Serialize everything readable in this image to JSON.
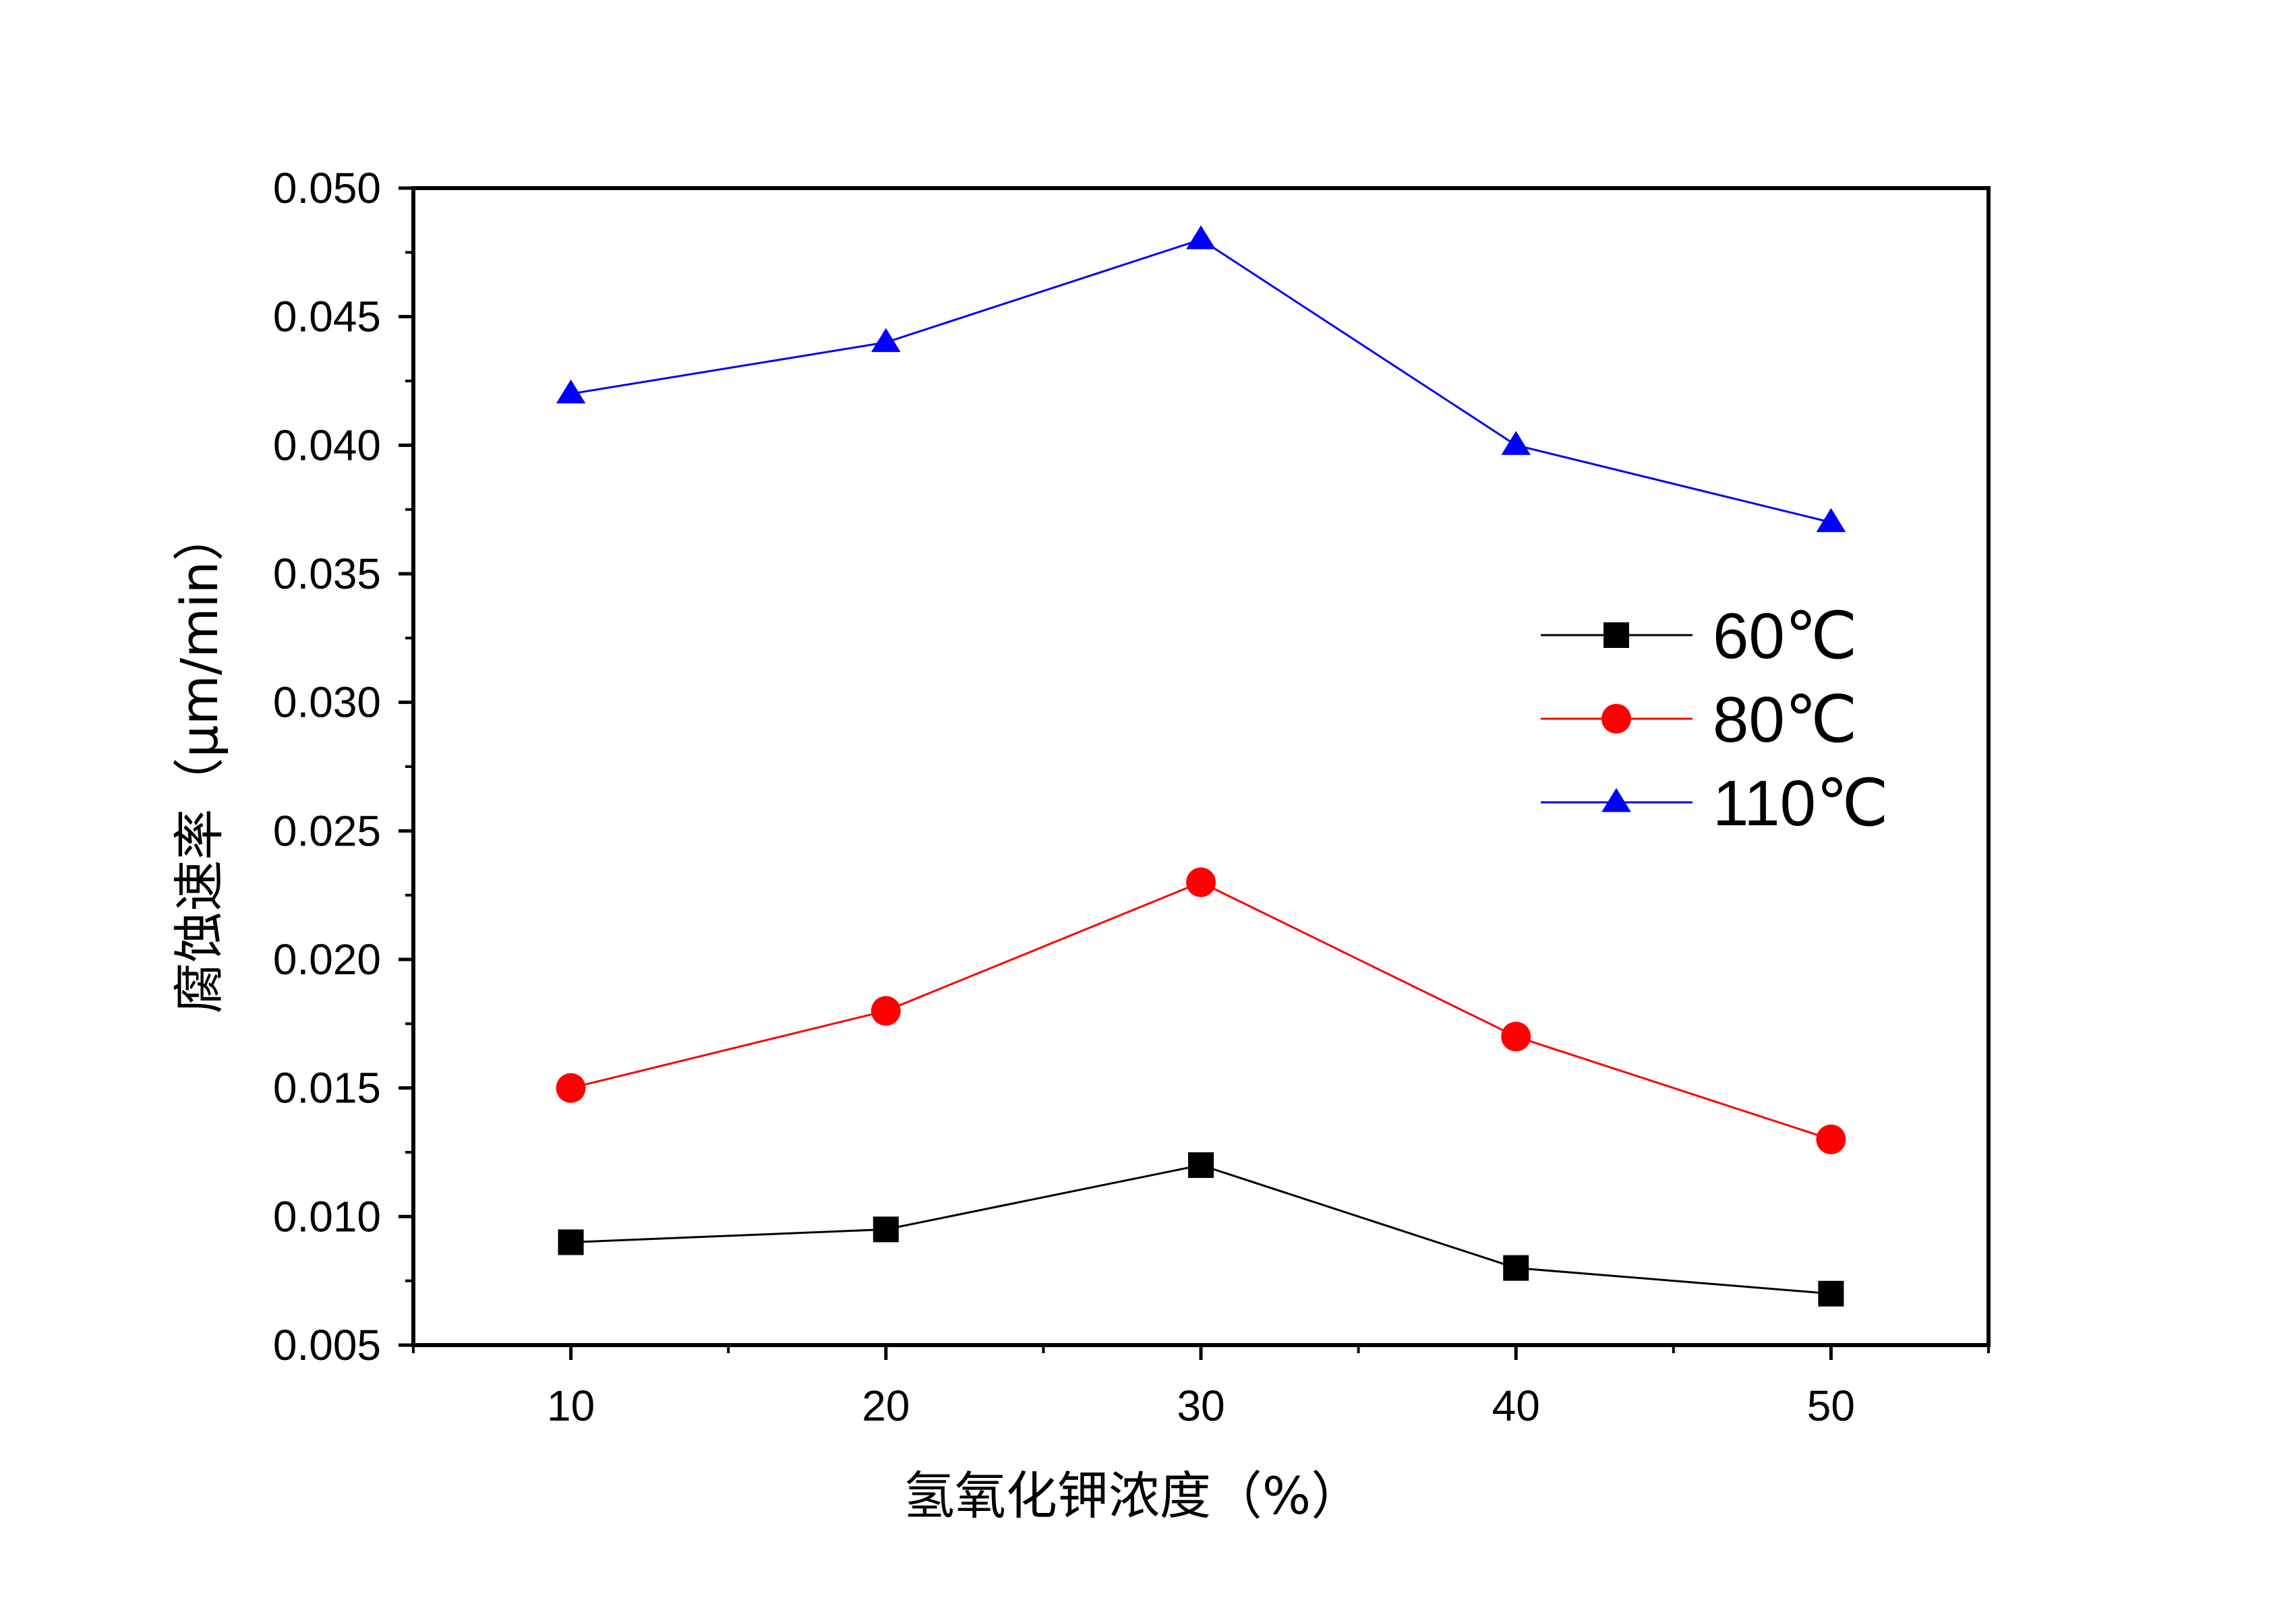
{
  "chart_data": {
    "type": "line",
    "title": "",
    "xlabel": "氢氧化钾浓度（%）",
    "ylabel": "腐蚀速率（μm/min）",
    "x": [
      10,
      20,
      30,
      40,
      50
    ],
    "xlim": [
      5,
      55
    ],
    "ylim": [
      0.005,
      0.05
    ],
    "x_ticks": [
      10,
      20,
      30,
      40,
      50
    ],
    "x_tick_labels": [
      "10",
      "20",
      "30",
      "40",
      "50"
    ],
    "y_ticks": [
      0.005,
      0.01,
      0.015,
      0.02,
      0.025,
      0.03,
      0.035,
      0.04,
      0.045,
      0.05
    ],
    "y_tick_labels": [
      "0.005",
      "0.010",
      "0.015",
      "0.020",
      "0.025",
      "0.030",
      "0.035",
      "0.040",
      "0.045",
      "0.050"
    ],
    "grid": false,
    "legend_position": "right",
    "series": [
      {
        "name": "60℃",
        "color": "#000000",
        "marker": "square",
        "values": [
          0.009,
          0.0095,
          0.012,
          0.008,
          0.007
        ]
      },
      {
        "name": "80℃",
        "color": "#ff0000",
        "marker": "circle",
        "values": [
          0.015,
          0.018,
          0.023,
          0.017,
          0.013
        ]
      },
      {
        "name": "110℃",
        "color": "#0000ff",
        "marker": "triangle",
        "values": [
          0.042,
          0.044,
          0.048,
          0.04,
          0.037
        ]
      }
    ]
  }
}
